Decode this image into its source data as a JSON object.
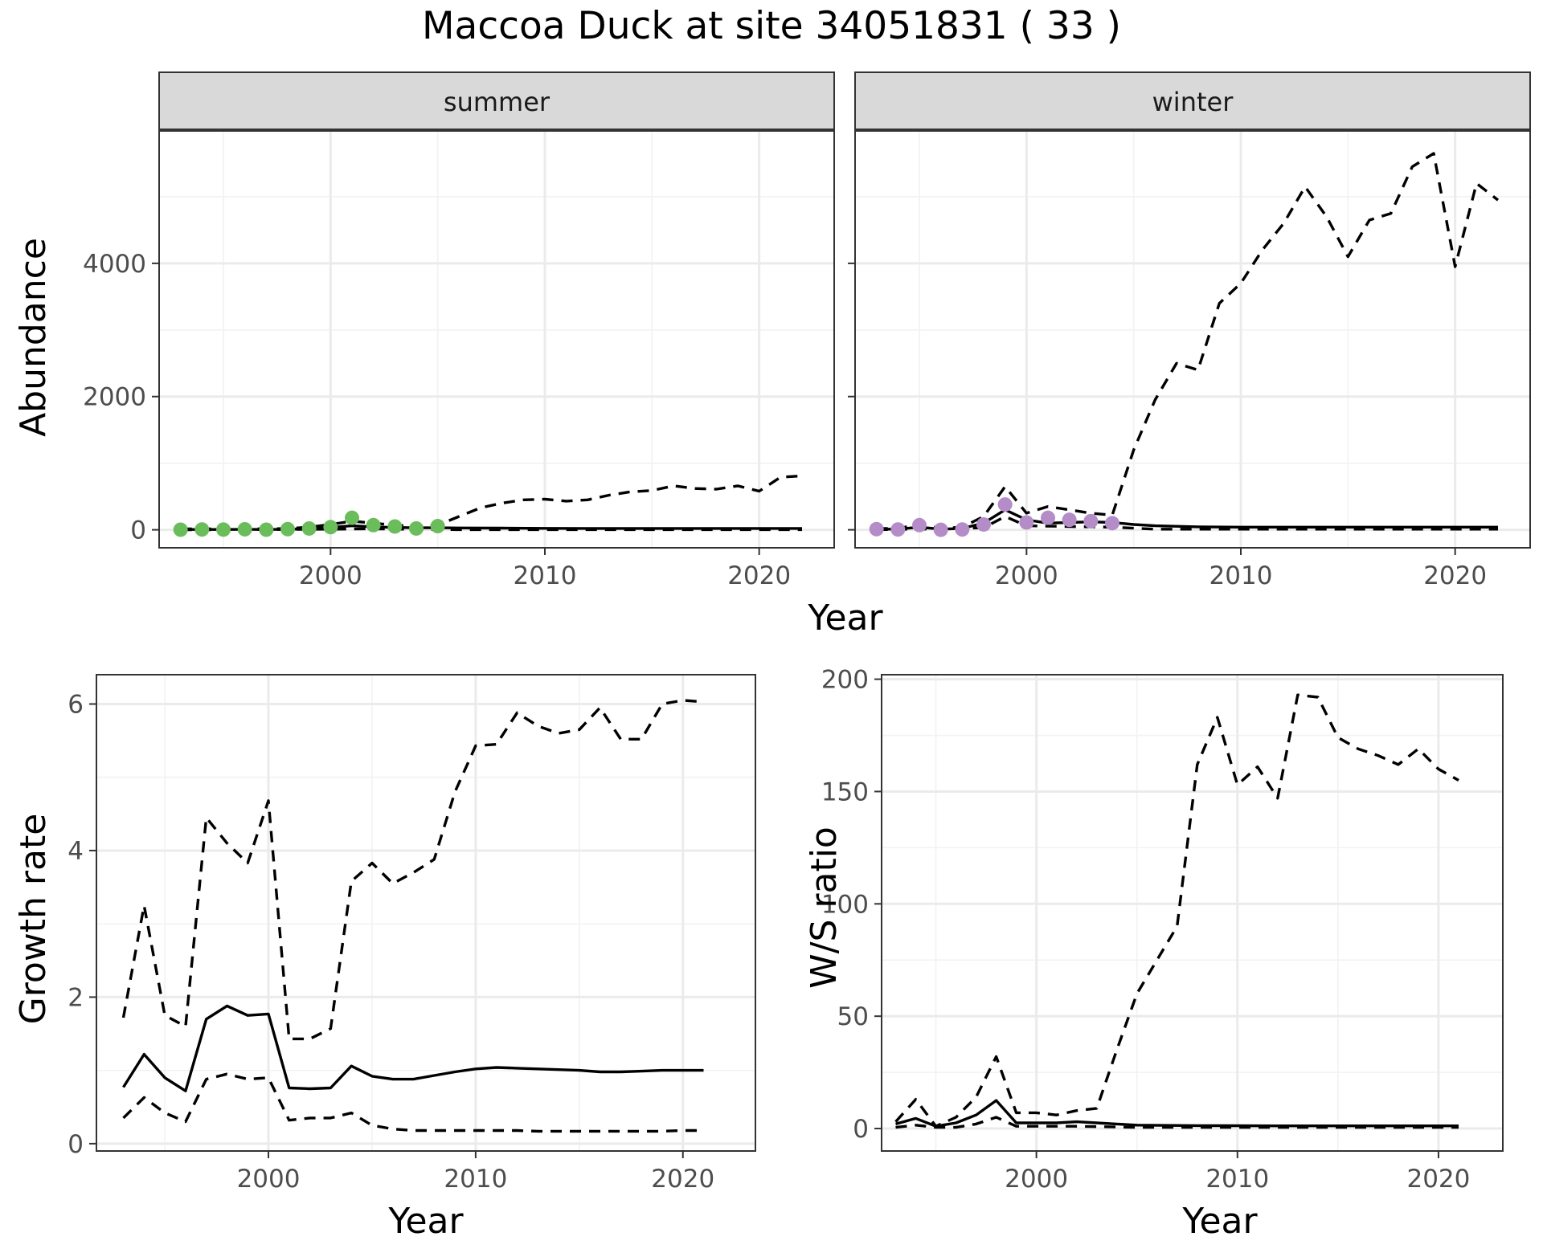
{
  "figure": {
    "title": "Maccoa Duck at site 34051831 ( 33 )",
    "colors": {
      "summer_points": "#6abd5a",
      "winter_points": "#b48cc8",
      "lines": "#000000"
    }
  },
  "chart_data": [
    {
      "type": "line",
      "panel": "summer",
      "facet_label": "summer",
      "xlabel": "Year",
      "ylabel": "Abundance",
      "x_ticks": [
        2000,
        2010,
        2020
      ],
      "y_ticks": [
        0,
        2000,
        4000
      ],
      "xlim": [
        1992,
        2023.5
      ],
      "ylim": [
        -270,
        6000
      ],
      "grid": true,
      "observed_points": {
        "x": [
          1993,
          1994,
          1995,
          1996,
          1997,
          1998,
          1999,
          2000,
          2001,
          2002,
          2003,
          2004,
          2005
        ],
        "y": [
          2,
          5,
          3,
          8,
          2,
          10,
          20,
          40,
          180,
          70,
          50,
          20,
          55
        ]
      },
      "series": [
        {
          "name": "",
          "role": "mean",
          "x": [
            1993,
            1994,
            1995,
            1996,
            1997,
            1998,
            1999,
            2000,
            2001,
            2002,
            2003,
            2004,
            2005,
            2006,
            2008,
            2010,
            2012,
            2014,
            2016,
            2018,
            2020,
            2022
          ],
          "y": [
            5,
            5,
            5,
            6,
            5,
            8,
            15,
            35,
            60,
            45,
            35,
            30,
            30,
            28,
            25,
            22,
            20,
            20,
            20,
            20,
            20,
            20
          ]
        },
        {
          "name": "",
          "role": "upper",
          "x": [
            1993,
            1994,
            1995,
            1996,
            1997,
            1998,
            1999,
            2000,
            2001,
            2002,
            2003,
            2004,
            2005,
            2006,
            2007,
            2008,
            2009,
            2010,
            2011,
            2012,
            2013,
            2014,
            2015,
            2016,
            2017,
            2018,
            2019,
            2020,
            2021,
            2022
          ],
          "y": [
            15,
            15,
            15,
            18,
            15,
            20,
            40,
            80,
            130,
            100,
            70,
            50,
            70,
            200,
            330,
            400,
            450,
            460,
            430,
            450,
            520,
            570,
            590,
            660,
            620,
            610,
            660,
            580,
            790,
            810
          ]
        },
        {
          "name": "",
          "role": "lower",
          "x": [
            1993,
            1995,
            2000,
            2002,
            2004,
            2006,
            2008,
            2010,
            2014,
            2018,
            2022
          ],
          "y": [
            1,
            1,
            10,
            15,
            8,
            3,
            2,
            2,
            2,
            2,
            2
          ]
        }
      ]
    },
    {
      "type": "line",
      "panel": "winter",
      "facet_label": "winter",
      "xlabel": "Year",
      "ylabel": "Abundance",
      "x_ticks": [
        2000,
        2010,
        2020
      ],
      "y_ticks": [
        0,
        2000,
        4000
      ],
      "xlim": [
        1992,
        2023.5
      ],
      "ylim": [
        -270,
        6000
      ],
      "grid": true,
      "observed_points": {
        "x": [
          1993,
          1994,
          1995,
          1996,
          1997,
          1998,
          1999,
          2000,
          2001,
          2002,
          2003,
          2004
        ],
        "y": [
          10,
          5,
          70,
          0,
          5,
          80,
          380,
          110,
          180,
          150,
          130,
          100
        ]
      },
      "series": [
        {
          "name": "",
          "role": "mean",
          "x": [
            1993,
            1994,
            1995,
            1996,
            1997,
            1998,
            1999,
            2000,
            2001,
            2002,
            2003,
            2004,
            2005,
            2006,
            2008,
            2010,
            2012,
            2015,
            2018,
            2020,
            2022
          ],
          "y": [
            10,
            10,
            40,
            10,
            20,
            100,
            300,
            150,
            100,
            110,
            120,
            110,
            80,
            60,
            45,
            40,
            40,
            40,
            40,
            40,
            40
          ]
        },
        {
          "name": "",
          "role": "upper",
          "x": [
            1993,
            1994,
            1995,
            1996,
            1997,
            1998,
            1999,
            2000,
            2001,
            2002,
            2003,
            2004,
            2005,
            2006,
            2007,
            2008,
            2009,
            2010,
            2011,
            2012,
            2013,
            2014,
            2015,
            2016,
            2017,
            2018,
            2019,
            2020,
            2021,
            2022
          ],
          "y": [
            20,
            20,
            80,
            20,
            40,
            200,
            650,
            250,
            350,
            300,
            250,
            220,
            1200,
            1950,
            2500,
            2400,
            3400,
            3700,
            4200,
            4600,
            5150,
            4700,
            4100,
            4650,
            4750,
            5450,
            5650,
            3950,
            5200,
            4950
          ]
        },
        {
          "name": "",
          "role": "lower",
          "x": [
            1993,
            1995,
            1998,
            1999,
            2000,
            2002,
            2004,
            2006,
            2010,
            2016,
            2022
          ],
          "y": [
            3,
            10,
            30,
            200,
            60,
            50,
            40,
            10,
            10,
            10,
            10
          ]
        }
      ]
    },
    {
      "type": "line",
      "panel": "growth",
      "xlabel": "Year",
      "ylabel": "Growth rate",
      "x_ticks": [
        2000,
        2010,
        2020
      ],
      "y_ticks": [
        0,
        2,
        4,
        6
      ],
      "xlim": [
        1991.7,
        2023.5
      ],
      "ylim": [
        -0.1,
        6.4
      ],
      "grid": true,
      "series": [
        {
          "name": "",
          "role": "mean",
          "x": [
            1993,
            1994,
            1995,
            1996,
            1997,
            1998,
            1999,
            2000,
            2001,
            2002,
            2003,
            2004,
            2005,
            2006,
            2007,
            2008,
            2009,
            2010,
            2011,
            2012,
            2013,
            2014,
            2015,
            2016,
            2017,
            2018,
            2019,
            2020,
            2021
          ],
          "y": [
            0.77,
            1.22,
            0.9,
            0.72,
            1.7,
            1.88,
            1.75,
            1.77,
            0.76,
            0.75,
            0.76,
            1.06,
            0.92,
            0.88,
            0.88,
            0.93,
            0.98,
            1.02,
            1.04,
            1.03,
            1.02,
            1.01,
            1.0,
            0.98,
            0.98,
            0.99,
            1.0,
            1.0,
            1.0
          ]
        },
        {
          "name": "",
          "role": "upper",
          "x": [
            1993,
            1994,
            1995,
            1996,
            1997,
            1998,
            1999,
            2000,
            2001,
            2002,
            2003,
            2004,
            2005,
            2006,
            2007,
            2008,
            2009,
            2010,
            2011,
            2012,
            2013,
            2014,
            2015,
            2016,
            2017,
            2018,
            2019,
            2020,
            2021
          ],
          "y": [
            1.72,
            3.25,
            1.75,
            1.6,
            4.45,
            4.1,
            3.83,
            4.68,
            1.43,
            1.43,
            1.57,
            3.58,
            3.83,
            3.55,
            3.7,
            3.88,
            4.8,
            5.43,
            5.45,
            5.88,
            5.7,
            5.6,
            5.65,
            5.95,
            5.52,
            5.52,
            6.0,
            6.05,
            6.03
          ]
        },
        {
          "name": "",
          "role": "lower",
          "x": [
            1993,
            1994,
            1995,
            1996,
            1997,
            1998,
            1999,
            2000,
            2001,
            2002,
            2003,
            2004,
            2005,
            2006,
            2007,
            2008,
            2009,
            2010,
            2011,
            2012,
            2013,
            2014,
            2015,
            2016,
            2017,
            2018,
            2019,
            2020,
            2021
          ],
          "y": [
            0.35,
            0.63,
            0.42,
            0.3,
            0.88,
            0.95,
            0.88,
            0.9,
            0.32,
            0.35,
            0.35,
            0.42,
            0.25,
            0.2,
            0.18,
            0.18,
            0.18,
            0.18,
            0.18,
            0.18,
            0.17,
            0.17,
            0.17,
            0.17,
            0.17,
            0.17,
            0.17,
            0.18,
            0.18
          ]
        }
      ]
    },
    {
      "type": "line",
      "panel": "ratio",
      "xlabel": "Year",
      "ylabel": "W/S ratio",
      "x_ticks": [
        2000,
        2010,
        2020
      ],
      "y_ticks": [
        0,
        50,
        100,
        150,
        200
      ],
      "xlim": [
        1992.3,
        2023.2
      ],
      "ylim": [
        -10,
        202
      ],
      "grid": true,
      "series": [
        {
          "name": "",
          "role": "mean",
          "x": [
            1993,
            1994,
            1995,
            1996,
            1997,
            1998,
            1999,
            2000,
            2001,
            2002,
            2003,
            2004,
            2005,
            2008,
            2012,
            2016,
            2021
          ],
          "y": [
            2,
            4.5,
            1,
            2.5,
            6,
            12.5,
            2.5,
            2.5,
            2.5,
            3,
            2.5,
            2,
            1.5,
            1.3,
            1.2,
            1.2,
            1.2
          ]
        },
        {
          "name": "",
          "role": "upper",
          "x": [
            1993,
            1994,
            1995,
            1996,
            1997,
            1998,
            1999,
            2000,
            2001,
            2002,
            2003,
            2004,
            2005,
            2006,
            2007,
            2008,
            2009,
            2010,
            2011,
            2012,
            2013,
            2014,
            2015,
            2016,
            2017,
            2018,
            2019,
            2020,
            2021
          ],
          "y": [
            3,
            13,
            1,
            5,
            14,
            32,
            7,
            7,
            6,
            8,
            9,
            35,
            60,
            75,
            90,
            162,
            183,
            153,
            161,
            147,
            193,
            192,
            174,
            169,
            166,
            162,
            169,
            160,
            155
          ]
        },
        {
          "name": "",
          "role": "lower",
          "x": [
            1993,
            1994,
            1995,
            1996,
            1997,
            1998,
            1999,
            2000,
            2002,
            2005,
            2010,
            2015,
            2021
          ],
          "y": [
            0.5,
            1.5,
            0.5,
            0.5,
            2,
            5,
            1,
            1,
            1,
            0.5,
            0.5,
            0.5,
            0.5
          ]
        }
      ]
    }
  ]
}
